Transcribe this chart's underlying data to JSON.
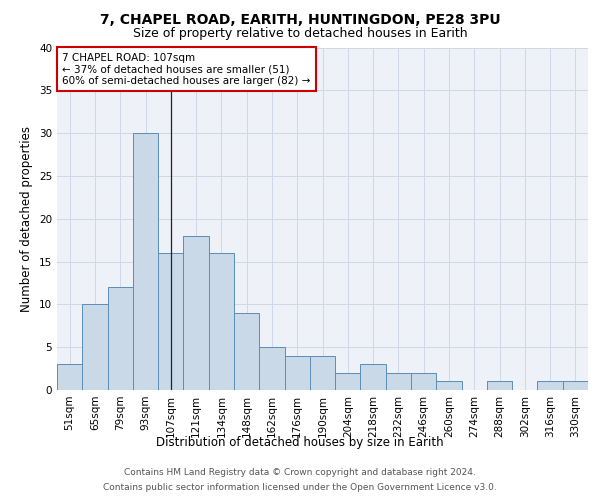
{
  "title1": "7, CHAPEL ROAD, EARITH, HUNTINGDON, PE28 3PU",
  "title2": "Size of property relative to detached houses in Earith",
  "xlabel": "Distribution of detached houses by size in Earith",
  "ylabel": "Number of detached properties",
  "categories": [
    "51sqm",
    "65sqm",
    "79sqm",
    "93sqm",
    "107sqm",
    "121sqm",
    "134sqm",
    "148sqm",
    "162sqm",
    "176sqm",
    "190sqm",
    "204sqm",
    "218sqm",
    "232sqm",
    "246sqm",
    "260sqm",
    "274sqm",
    "288sqm",
    "302sqm",
    "316sqm",
    "330sqm"
  ],
  "values": [
    3,
    10,
    12,
    30,
    16,
    18,
    16,
    9,
    5,
    4,
    4,
    2,
    3,
    2,
    2,
    1,
    0,
    1,
    0,
    1,
    1
  ],
  "bar_color": "#c9d9e8",
  "bar_edge_color": "#5b8db8",
  "grid_color": "#d0d8e8",
  "background_color": "#eef2f8",
  "annotation_box_text": "7 CHAPEL ROAD: 107sqm\n← 37% of detached houses are smaller (51)\n60% of semi-detached houses are larger (82) →",
  "annotation_box_color": "#ffffff",
  "annotation_box_edge_color": "#cc0000",
  "marker_bar_index": 4,
  "ylim": [
    0,
    40
  ],
  "yticks": [
    0,
    5,
    10,
    15,
    20,
    25,
    30,
    35,
    40
  ],
  "footer_line1": "Contains HM Land Registry data © Crown copyright and database right 2024.",
  "footer_line2": "Contains public sector information licensed under the Open Government Licence v3.0.",
  "title1_fontsize": 10,
  "title2_fontsize": 9,
  "xlabel_fontsize": 8.5,
  "ylabel_fontsize": 8.5,
  "tick_fontsize": 7.5,
  "ann_fontsize": 7.5,
  "footer_fontsize": 6.5
}
